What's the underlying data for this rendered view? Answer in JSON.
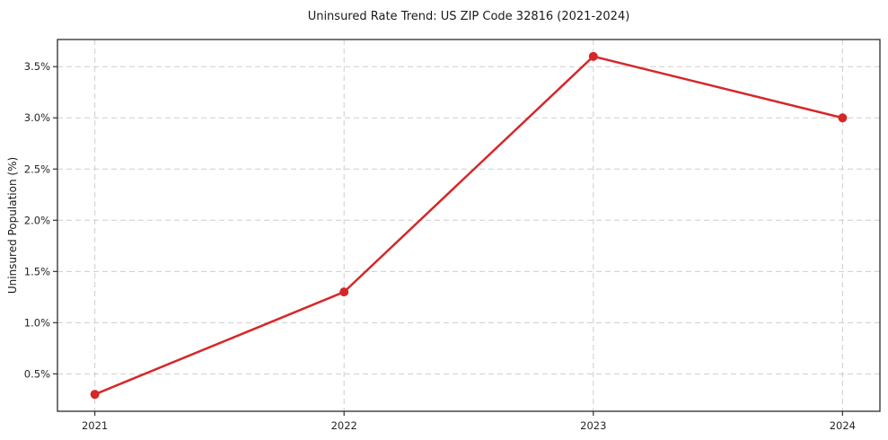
{
  "page": {
    "title": "Uninsured Rate Trend: US ZIP Code 32816 (2021-2024)"
  },
  "chart_data": {
    "type": "line",
    "title": "Uninsured Rate Trend: US ZIP Code 32816 (2021-2024)",
    "xlabel": "",
    "ylabel": "Uninsured Population (%)",
    "x": [
      2021,
      2022,
      2023,
      2024
    ],
    "x_tick_labels": [
      "2021",
      "2022",
      "2023",
      "2024"
    ],
    "series": [
      {
        "name": "uninsured-rate",
        "values": [
          0.3,
          1.3,
          3.6,
          3.0
        ],
        "color": "#d62728",
        "marker": "circle",
        "line_width": 2.5,
        "marker_radius": 5
      }
    ],
    "y_ticks": [
      0.5,
      1.0,
      1.5,
      2.0,
      2.5,
      3.0,
      3.5
    ],
    "y_tick_labels": [
      "0.5%",
      "1.0%",
      "1.5%",
      "2.0%",
      "2.5%",
      "3.0%",
      "3.5%"
    ],
    "xlim": [
      2020.85,
      2024.15
    ],
    "ylim": [
      0.135,
      3.765
    ],
    "grid": true,
    "grid_style": "dashed",
    "legend_position": "none"
  },
  "colors": {
    "line": "#d62728",
    "grid": "#cdcdcd",
    "spine": "#2b2b2b",
    "tick": "#333333",
    "text": "#262626",
    "background": "#ffffff"
  }
}
